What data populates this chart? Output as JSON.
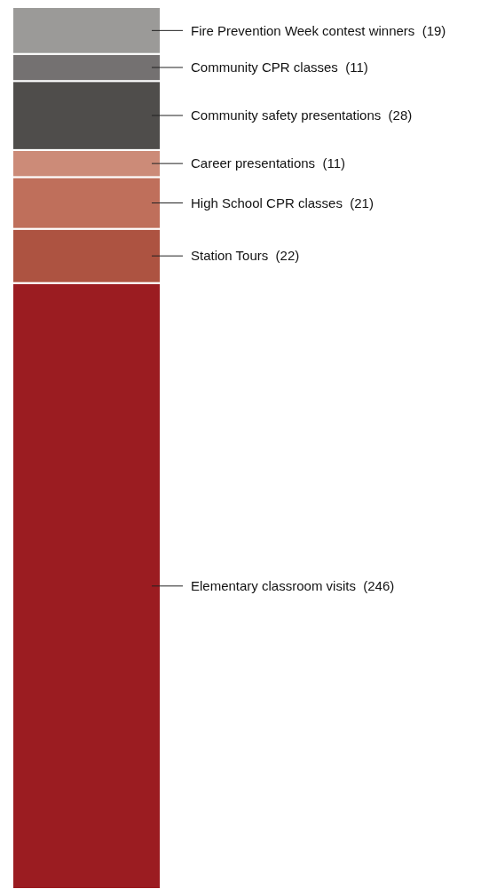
{
  "chart_data": {
    "type": "bar",
    "stacked": true,
    "categories": [
      null
    ],
    "series": [
      {
        "color": "#9b1c21",
        "values": [
          246
        ],
        "value_labels": [
          "Elementary classroom visits  (246)"
        ]
      },
      {
        "color": "#ad5341",
        "values": [
          22
        ],
        "value_labels": [
          "Station Tours  (22)"
        ]
      },
      {
        "color": "#bf6f5b",
        "values": [
          21
        ],
        "value_labels": [
          "High School CPR classes  (21)"
        ]
      },
      {
        "color": "#cc8b78",
        "values": [
          11
        ],
        "value_labels": [
          "Career presentations  (11)"
        ]
      },
      {
        "color": "#4f4d4b",
        "values": [
          28
        ],
        "value_labels": [
          "Community safety presentations  (28)"
        ]
      },
      {
        "color": "#747171",
        "values": [
          11
        ],
        "value_labels": [
          "Community CPR classes  (11)"
        ]
      },
      {
        "color": "#9b9a98",
        "values": [
          19
        ],
        "value_labels": [
          "Fire Prevention Week contest winners  (19)"
        ]
      }
    ]
  }
}
